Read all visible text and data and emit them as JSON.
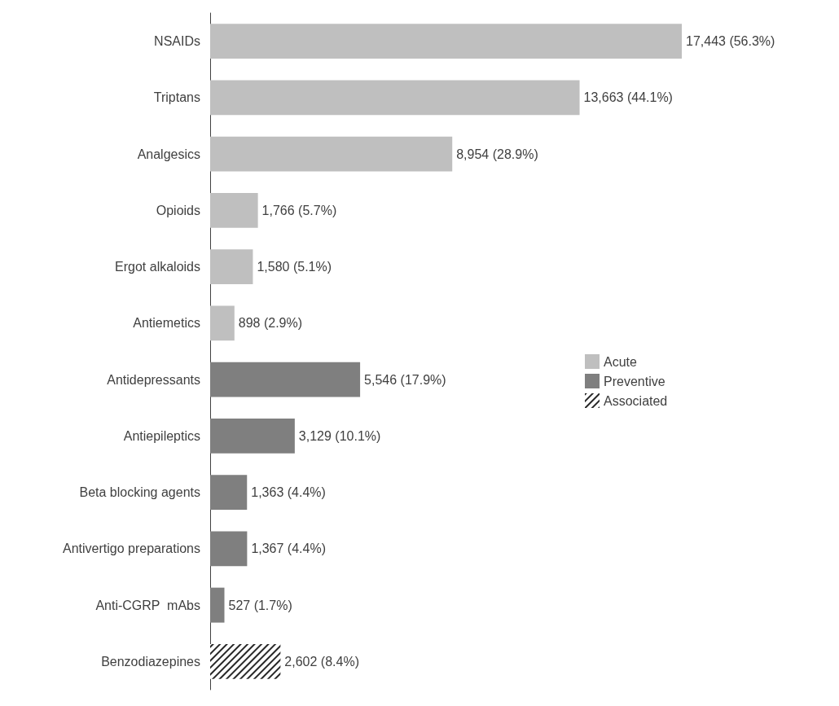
{
  "chart_data": {
    "type": "bar",
    "orientation": "horizontal",
    "categories": [
      "NSAIDs",
      "Triptans",
      "Analgesics",
      "Opioids",
      "Ergot alkaloids",
      "Antiemetics",
      "Antidepressants",
      "Antiepileptics",
      "Beta blocking agents",
      "Antivertigo preparations",
      "Anti-CGRP  mAbs",
      "Benzodiazepines"
    ],
    "series": [
      {
        "name": "Acute",
        "color": "#bfbfbf",
        "values": [
          17443,
          13663,
          8954,
          1766,
          1580,
          898,
          null,
          null,
          null,
          null,
          null,
          null
        ],
        "value_labels": [
          "17,443 (56.3%)",
          "13,663 (44.1%)",
          "8,954 (28.9%)",
          "1,766 (5.7%)",
          "1,580 (5.1%)",
          "898 (2.9%)",
          null,
          null,
          null,
          null,
          null,
          null
        ]
      },
      {
        "name": "Preventive",
        "color": "#7f7f7f",
        "values": [
          null,
          null,
          null,
          null,
          null,
          null,
          5546,
          3129,
          1363,
          1367,
          527,
          null
        ],
        "value_labels": [
          null,
          null,
          null,
          null,
          null,
          null,
          "5,546 (17.9%)",
          "3,129 (10.1%)",
          "1,363 (4.4%)",
          "1,367 (4.4%)",
          "527 (1.7%)",
          null
        ]
      },
      {
        "name": "Associated",
        "color": "#262626",
        "values": [
          null,
          null,
          null,
          null,
          null,
          null,
          null,
          null,
          null,
          null,
          null,
          2602
        ],
        "value_labels": [
          null,
          null,
          null,
          null,
          null,
          null,
          null,
          null,
          null,
          null,
          null,
          "2,602 (8.4%)"
        ]
      }
    ],
    "legend": "right"
  }
}
